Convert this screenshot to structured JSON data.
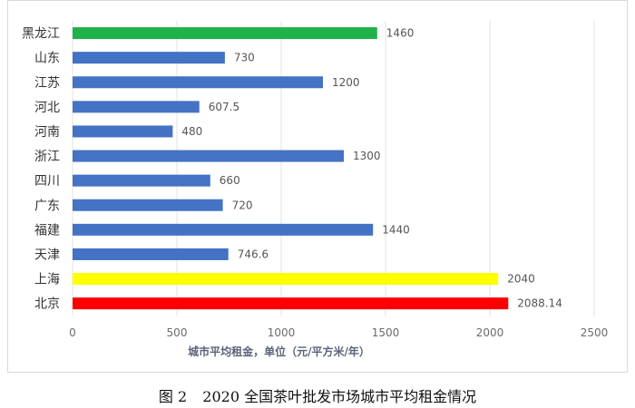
{
  "chart_data": {
    "type": "bar",
    "orientation": "horizontal",
    "categories": [
      "黑龙江",
      "山东",
      "江苏",
      "河北",
      "河南",
      "浙江",
      "四川",
      "广东",
      "福建",
      "天津",
      "上海",
      "北京"
    ],
    "values": [
      1460,
      730,
      1200,
      607.5,
      480,
      1300,
      660,
      720,
      1440,
      746.6,
      2040,
      2088.14
    ],
    "value_labels": [
      "1460",
      "730",
      "1200",
      "607.5",
      "480",
      "1300",
      "660",
      "720",
      "1440",
      "746.6",
      "2040",
      "2088.14"
    ],
    "colors": [
      "#1fb14a",
      "#4472c4",
      "#4472c4",
      "#4472c4",
      "#4472c4",
      "#4472c4",
      "#4472c4",
      "#4472c4",
      "#4472c4",
      "#4472c4",
      "#ffff00",
      "#ff0000"
    ],
    "xlabel": "城市平均租金，单位（元/平方米/年）",
    "ylabel": "",
    "xlim": [
      0,
      2500
    ],
    "xticks": [
      "0",
      "500",
      "1000",
      "1500",
      "2000",
      "2500"
    ],
    "grid": true
  },
  "caption": {
    "figure": "图 2",
    "title": "2020 全国茶叶批发市场城市平均租金情况"
  }
}
